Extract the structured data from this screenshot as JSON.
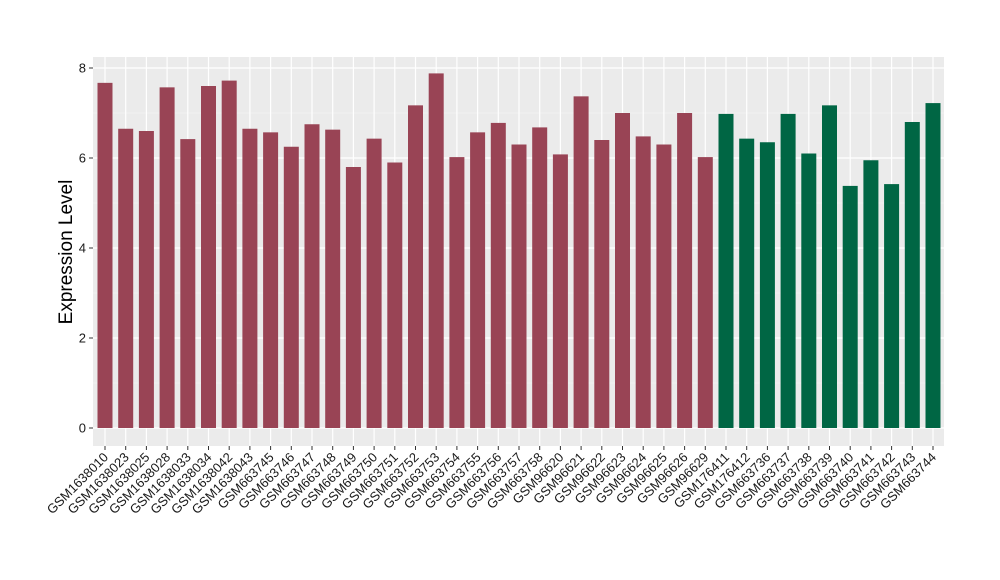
{
  "chart_data": {
    "type": "bar",
    "title": "",
    "xlabel": "",
    "ylabel": "Expression Level",
    "ylim": [
      0,
      8.3
    ],
    "yticks": [
      0,
      2,
      4,
      6,
      8
    ],
    "grid": true,
    "background": "#ebebeb",
    "categories": [
      "GSM1638010",
      "GSM1638023",
      "GSM1638025",
      "GSM1638028",
      "GSM1638033",
      "GSM1638034",
      "GSM1638042",
      "GSM1638043",
      "GSM663745",
      "GSM663746",
      "GSM663747",
      "GSM663748",
      "GSM663749",
      "GSM663750",
      "GSM663751",
      "GSM663752",
      "GSM663753",
      "GSM663754",
      "GSM663755",
      "GSM663756",
      "GSM663757",
      "GSM663758",
      "GSM96620",
      "GSM96621",
      "GSM96622",
      "GSM96623",
      "GSM96624",
      "GSM96625",
      "GSM96626",
      "GSM96629",
      "GSM176411",
      "GSM176412",
      "GSM663736",
      "GSM663737",
      "GSM663738",
      "GSM663739",
      "GSM663740",
      "GSM663741",
      "GSM663742",
      "GSM663743",
      "GSM663744"
    ],
    "values": [
      7.67,
      6.65,
      6.6,
      7.57,
      6.42,
      7.6,
      7.72,
      6.65,
      6.57,
      6.25,
      6.75,
      6.63,
      5.8,
      6.43,
      5.9,
      7.17,
      7.88,
      6.02,
      6.57,
      6.78,
      6.3,
      6.68,
      6.08,
      7.37,
      6.4,
      7.0,
      6.48,
      6.3,
      7.0,
      6.02,
      6.98,
      6.43,
      6.35,
      6.98,
      6.1,
      7.17,
      5.38,
      5.95,
      5.42,
      6.8,
      7.22
    ],
    "bar_groups": [
      0,
      0,
      0,
      0,
      0,
      0,
      0,
      0,
      0,
      0,
      0,
      0,
      0,
      0,
      0,
      0,
      0,
      0,
      0,
      0,
      0,
      0,
      0,
      0,
      0,
      0,
      0,
      0,
      0,
      0,
      1,
      1,
      1,
      1,
      1,
      1,
      1,
      1,
      1,
      1,
      1
    ],
    "colors": [
      "#994455",
      "#006644"
    ]
  }
}
